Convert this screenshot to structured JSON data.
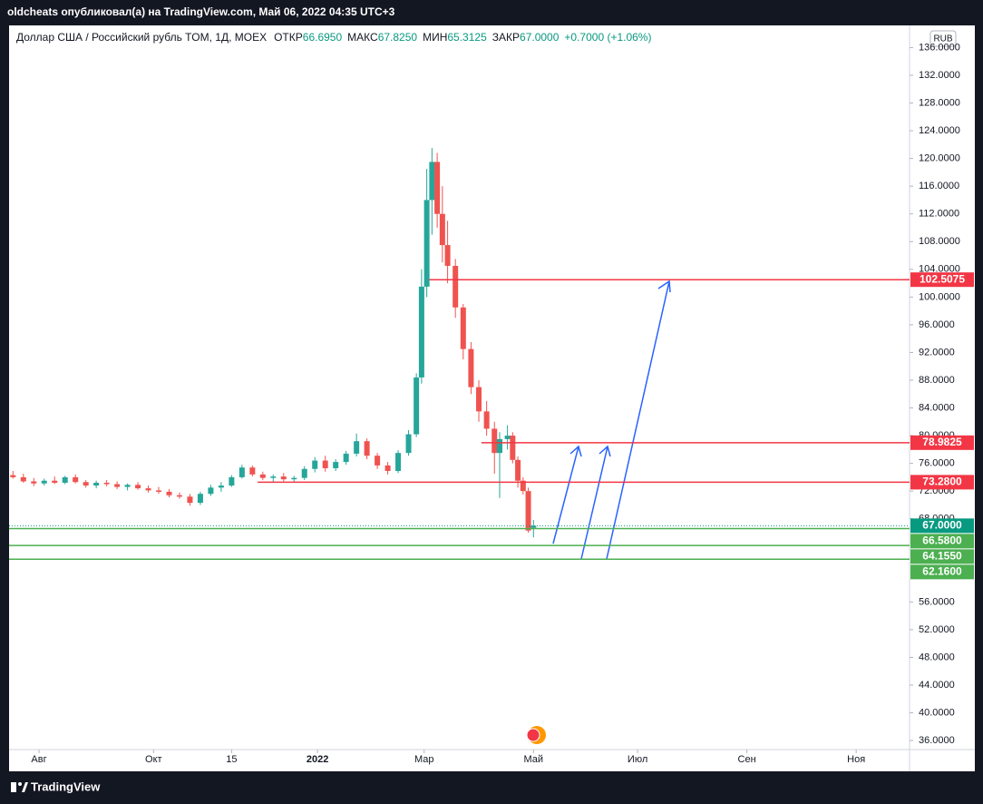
{
  "header": {
    "publisher": "oldcheats опубликовал(а) на TradingView.com, Май 06, 2022 04:35 UTC+3",
    "brand": "TradingView"
  },
  "chart_data": {
    "type": "candlestick",
    "title": "Доллар США / Российский рубль TOM, 1Д, MOEX",
    "ohlc_legend": [
      {
        "label": "ОТКР",
        "value": "66.6950"
      },
      {
        "label": "МАКС",
        "value": "67.8250"
      },
      {
        "label": "МИН",
        "value": "65.3125"
      },
      {
        "label": "ЗАКР",
        "value": "67.0000"
      }
    ],
    "change": "+0.7000 (+1.06%)",
    "currency": "RUB",
    "x": [
      -10,
      -6,
      -2,
      2,
      6,
      10,
      14,
      18,
      22,
      26,
      30,
      34,
      38,
      42,
      46,
      50,
      54,
      58,
      62,
      66,
      70,
      74,
      78,
      82,
      86,
      90,
      94,
      98,
      102,
      106,
      110,
      114,
      118,
      122,
      126,
      130,
      134,
      138,
      142,
      145,
      147,
      149,
      151,
      153,
      155,
      157,
      160,
      163,
      166,
      169,
      172,
      175,
      177,
      180,
      182,
      184,
      186,
      188,
      190
    ],
    "open": [
      74.3,
      74.0,
      73.4,
      73.1,
      73.5,
      73.2,
      74.0,
      73.3,
      72.8,
      73.2,
      73.0,
      72.6,
      72.9,
      72.4,
      72.1,
      71.9,
      71.4,
      71.2,
      70.3,
      71.6,
      72.5,
      72.8,
      74.0,
      75.4,
      74.4,
      73.9,
      74.1,
      73.7,
      73.9,
      75.2,
      76.4,
      75.3,
      76.2,
      77.4,
      79.2,
      77.1,
      75.7,
      74.9,
      77.5,
      80.2,
      88.4,
      101.5,
      114.0,
      119.5,
      112.0,
      107.5,
      104.5,
      98.5,
      92.5,
      87.0,
      83.5,
      81.0,
      77.5,
      79.5,
      80.0,
      76.5,
      73.5,
      72.0,
      66.695
    ],
    "high": [
      74.9,
      74.5,
      73.9,
      73.8,
      74.1,
      74.2,
      74.4,
      73.6,
      73.5,
      73.6,
      73.4,
      73.1,
      73.3,
      72.8,
      72.6,
      72.3,
      71.8,
      71.6,
      71.9,
      72.9,
      73.3,
      74.3,
      75.8,
      75.7,
      74.8,
      74.4,
      74.6,
      74.2,
      75.6,
      76.9,
      77.1,
      76.6,
      77.8,
      80.3,
      79.6,
      77.5,
      76.2,
      77.9,
      80.8,
      89.0,
      104.0,
      118.5,
      121.5,
      120.8,
      116.0,
      111.0,
      105.5,
      99.0,
      93.5,
      88.0,
      85.0,
      82.0,
      80.5,
      81.5,
      80.5,
      77.0,
      74.0,
      72.5,
      67.825
    ],
    "low": [
      73.8,
      73.2,
      72.7,
      72.8,
      73.0,
      73.0,
      73.1,
      72.5,
      72.4,
      72.7,
      72.3,
      72.1,
      72.2,
      71.8,
      71.6,
      71.1,
      70.9,
      69.9,
      70.0,
      71.3,
      71.9,
      72.6,
      73.8,
      74.1,
      73.6,
      73.2,
      73.4,
      73.3,
      73.6,
      74.7,
      74.8,
      74.9,
      75.8,
      77.0,
      76.6,
      75.2,
      74.4,
      74.6,
      77.1,
      79.8,
      87.5,
      100.0,
      109.0,
      110.0,
      105.0,
      102.0,
      97.0,
      91.0,
      86.0,
      82.0,
      80.0,
      74.5,
      71.0,
      78.0,
      76.0,
      72.5,
      71.5,
      66.0,
      65.3125
    ],
    "close": [
      74.0,
      73.4,
      73.1,
      73.5,
      73.2,
      74.0,
      73.3,
      72.8,
      73.2,
      73.0,
      72.6,
      72.9,
      72.4,
      72.1,
      71.9,
      71.4,
      71.2,
      70.3,
      71.6,
      72.5,
      72.8,
      74.0,
      75.4,
      74.4,
      73.9,
      74.1,
      73.7,
      73.9,
      75.2,
      76.4,
      75.3,
      76.2,
      77.4,
      79.2,
      77.1,
      75.7,
      74.9,
      77.5,
      80.2,
      88.4,
      101.5,
      114.0,
      119.5,
      112.0,
      107.5,
      104.5,
      98.5,
      92.5,
      87.0,
      83.5,
      81.0,
      77.5,
      79.5,
      80.0,
      76.5,
      73.5,
      72.0,
      66.3,
      67.0
    ],
    "up_color": "#26a69a",
    "down_color": "#ef5350",
    "xlim": [
      -11.5,
      334.5
    ],
    "xticks": [
      {
        "value": 0,
        "label": "Авг"
      },
      {
        "value": 44,
        "label": "Окт"
      },
      {
        "value": 74,
        "label": "15"
      },
      {
        "value": 107,
        "label": "2022"
      },
      {
        "value": 148,
        "label": "Мар"
      },
      {
        "value": 190,
        "label": "Май"
      },
      {
        "value": 230,
        "label": "Июл"
      },
      {
        "value": 272,
        "label": "Сен"
      },
      {
        "value": 314,
        "label": "Ноя"
      }
    ],
    "ylim": [
      34.7,
      139.2
    ],
    "yticks": [
      {
        "value": 36,
        "label": "36.0000"
      },
      {
        "value": 40,
        "label": "40.0000"
      },
      {
        "value": 44,
        "label": "44.0000"
      },
      {
        "value": 48,
        "label": "48.0000"
      },
      {
        "value": 52,
        "label": "52.0000"
      },
      {
        "value": 56,
        "label": "56.0000"
      },
      {
        "value": 68,
        "label": "68.0000"
      },
      {
        "value": 72,
        "label": "72.0000"
      },
      {
        "value": 76,
        "label": "76.0000"
      },
      {
        "value": 80,
        "label": "80.0000"
      },
      {
        "value": 84,
        "label": "84.0000"
      },
      {
        "value": 88,
        "label": "88.0000"
      },
      {
        "value": 92,
        "label": "92.0000"
      },
      {
        "value": 96,
        "label": "96.0000"
      },
      {
        "value": 100,
        "label": "100.0000"
      },
      {
        "value": 104,
        "label": "104.0000"
      },
      {
        "value": 108,
        "label": "108.0000"
      },
      {
        "value": 112,
        "label": "112.0000"
      },
      {
        "value": 116,
        "label": "116.0000"
      },
      {
        "value": 120,
        "label": "120.0000"
      },
      {
        "value": 124,
        "label": "124.0000"
      },
      {
        "value": 128,
        "label": "128.0000"
      },
      {
        "value": 132,
        "label": "132.0000"
      },
      {
        "value": 136,
        "label": "136.0000"
      }
    ],
    "levels": [
      {
        "value": 102.5075,
        "label": "102.5075",
        "color": "#f23645",
        "x_start": 150
      },
      {
        "value": 78.9825,
        "label": "78.9825",
        "color": "#f23645",
        "x_start": 170
      },
      {
        "value": 73.28,
        "label": "73.2800",
        "color": "#f23645",
        "x_start": 84
      },
      {
        "value": 67,
        "label": "67.0000",
        "color": "#089981",
        "x_start": -11.5,
        "style": "dotted"
      },
      {
        "value": 66.58,
        "label": "66.5800",
        "color": "#4caf50",
        "x_start": -11.5
      },
      {
        "value": 64.155,
        "label": "64.1550",
        "color": "#4caf50",
        "x_start": -11.5
      },
      {
        "value": 62.16,
        "label": "62.1600",
        "color": "#4caf50",
        "x_start": -11.5
      }
    ]
  }
}
